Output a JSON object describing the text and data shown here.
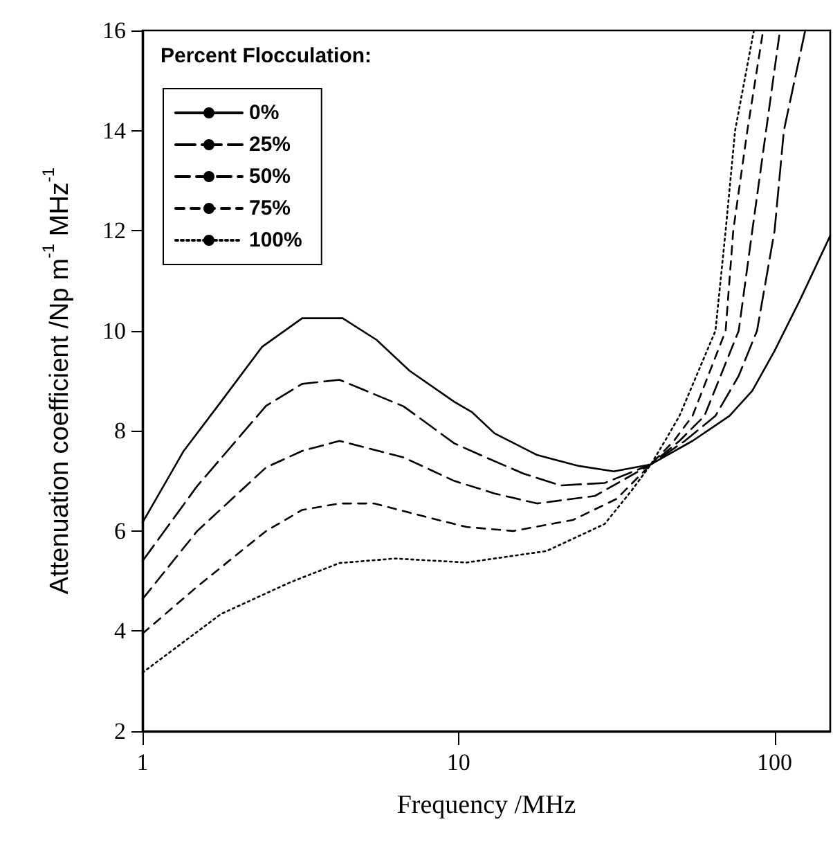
{
  "chart_data": {
    "type": "line",
    "xlabel": "Frequency /MHz",
    "ylabel": "Attenuation coefficient /Np m$^{-1}$ MHz$^{-1}$",
    "legend_title": "Percent Flocculation:",
    "log": "x",
    "xlim": [
      1,
      150
    ],
    "xticks": [
      1,
      10,
      100
    ],
    "ylim": [
      2,
      16
    ],
    "yticks": [
      2,
      4,
      6,
      8,
      10,
      12,
      14,
      16
    ],
    "grid": false,
    "legend": "top left",
    "marker": "none",
    "series": [
      {
        "name": "0%",
        "color": "#000000",
        "line_style": "solid",
        "x": [
          1,
          1.35,
          1.77,
          2.39,
          3.2,
          4.3,
          5.5,
          7,
          9.7,
          11,
          13,
          17.7,
          24,
          31,
          40.6,
          55,
          72,
          85,
          100,
          120,
          150
        ],
        "values": [
          6.17,
          7.6,
          8.58,
          9.68,
          10.25,
          10.25,
          9.82,
          9.2,
          8.58,
          8.38,
          7.95,
          7.52,
          7.3,
          7.19,
          7.33,
          7.8,
          8.3,
          8.8,
          9.6,
          10.6,
          11.9
        ]
      },
      {
        "name": "25%",
        "color": "#000000",
        "line_style": "dashed",
        "x": [
          1,
          1.49,
          2.46,
          3.2,
          4.2,
          6.7,
          9.7,
          12.2,
          16,
          21,
          29,
          40.6,
          52,
          65,
          77,
          88,
          100,
          107,
          125
        ],
        "values": [
          5.4,
          6.9,
          8.5,
          8.94,
          9.02,
          8.49,
          7.75,
          7.47,
          7.15,
          6.91,
          6.96,
          7.33,
          7.8,
          8.3,
          9.1,
          10,
          12,
          14,
          16
        ]
      },
      {
        "name": "50%",
        "color": "#000000",
        "line_style": "dashed",
        "x": [
          1,
          1.49,
          2.46,
          3.2,
          4.2,
          6.7,
          9.7,
          13,
          17.7,
          27,
          40.6,
          50,
          60,
          77,
          85,
          94,
          104
        ],
        "values": [
          4.64,
          6,
          7.27,
          7.6,
          7.8,
          7.47,
          7,
          6.75,
          6.55,
          6.7,
          7.33,
          7.8,
          8.3,
          10,
          12,
          14,
          16
        ]
      },
      {
        "name": "75%",
        "color": "#000000",
        "line_style": "dashed",
        "x": [
          1,
          1.49,
          2.46,
          3.2,
          4.2,
          5.4,
          7.9,
          10.6,
          14.9,
          23,
          31.6,
          40.6,
          48,
          55,
          70,
          74,
          82,
          92
        ],
        "values": [
          3.95,
          4.89,
          6,
          6.42,
          6.55,
          6.55,
          6.28,
          6.08,
          6,
          6.22,
          6.64,
          7.33,
          7.8,
          8.3,
          10,
          12,
          14,
          16
        ]
      },
      {
        "name": "100%",
        "color": "#000000",
        "line_style": "dotted",
        "x": [
          1,
          1.77,
          2.92,
          4.2,
          6.3,
          10.6,
          19,
          29,
          35.5,
          40.6,
          45,
          50,
          65,
          70,
          75,
          86
        ],
        "values": [
          3.17,
          4.34,
          4.97,
          5.36,
          5.45,
          5.37,
          5.6,
          6.14,
          6.83,
          7.33,
          7.8,
          8.3,
          10,
          12,
          14,
          16
        ]
      }
    ]
  }
}
